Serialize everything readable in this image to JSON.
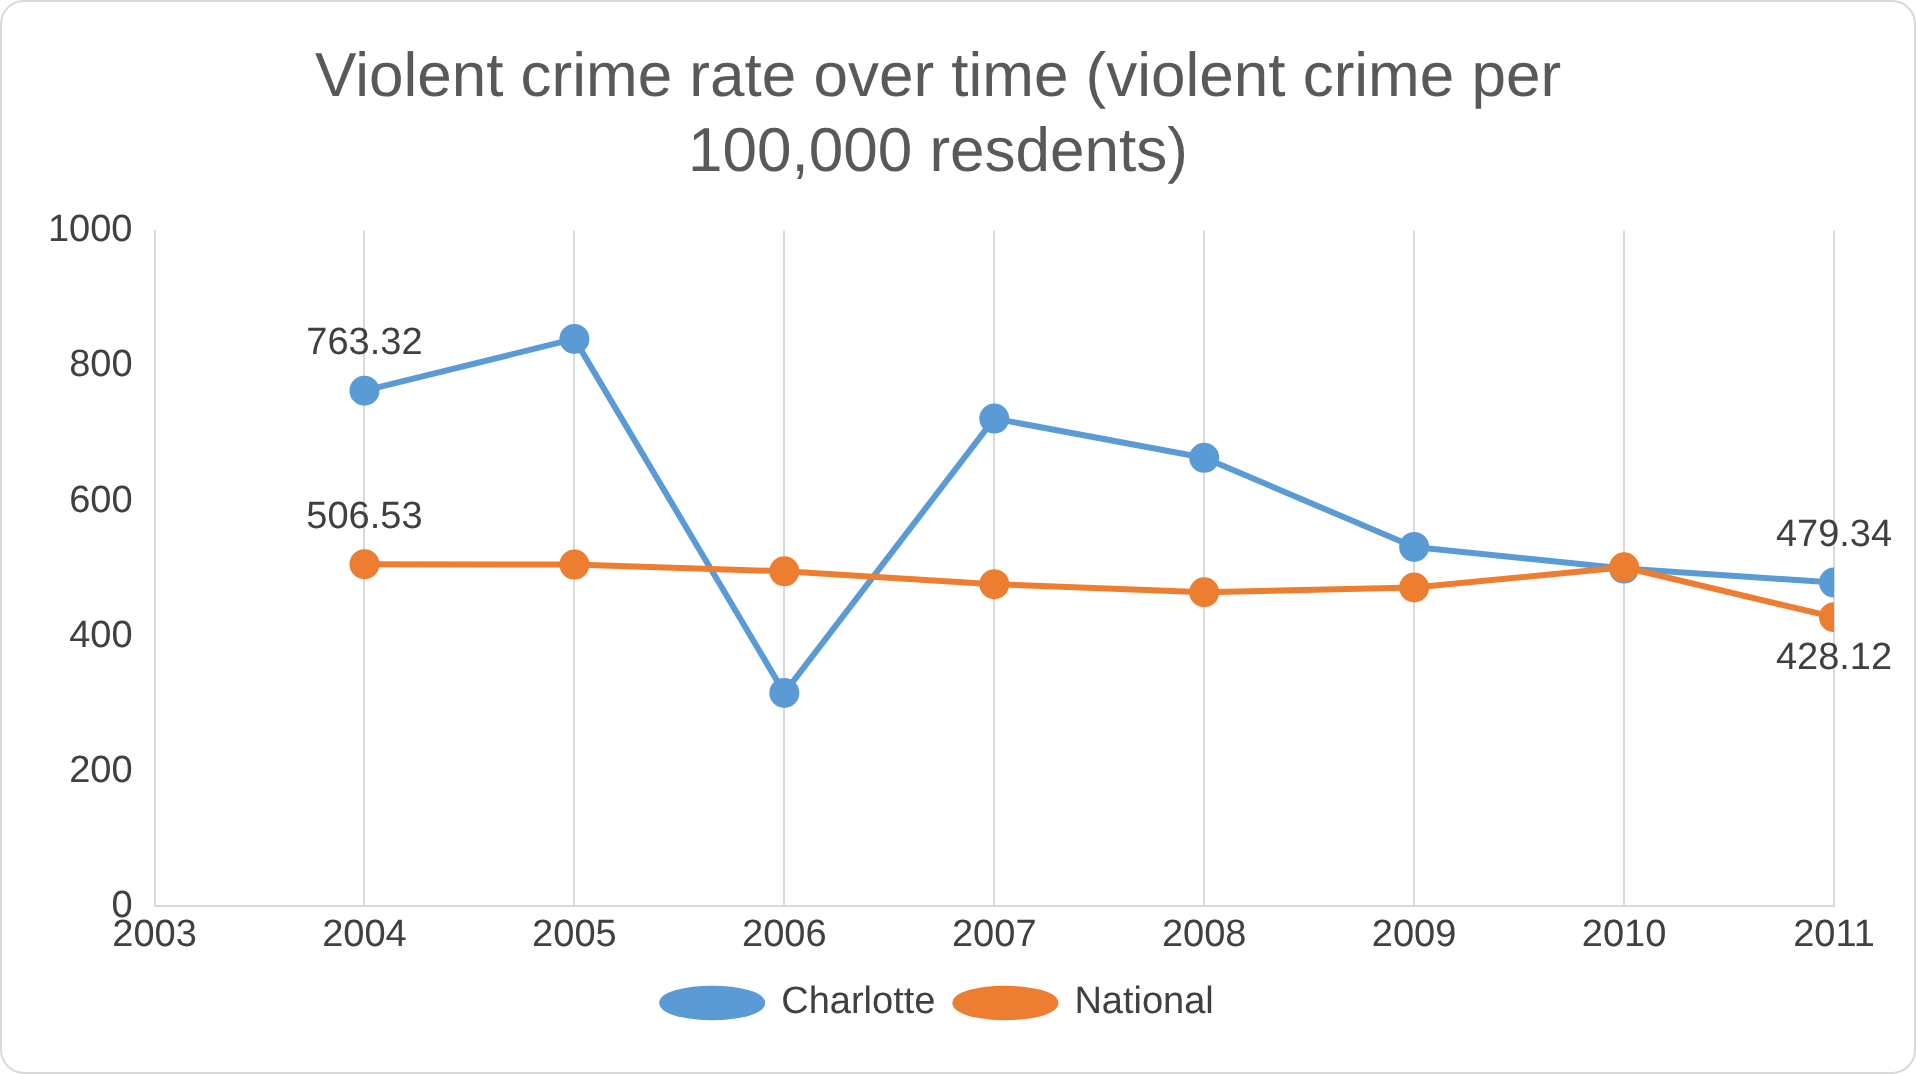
{
  "chart_data": {
    "type": "line",
    "title": "Violent crime rate over time (violent crime per 100,000 resdents)",
    "x": [
      2004,
      2005,
      2006,
      2007,
      2008,
      2009,
      2010,
      2011
    ],
    "series": [
      {
        "name": "Charlotte",
        "color": "#5b9bd5",
        "values": [
          763.32,
          840,
          316,
          722,
          664,
          532,
          500,
          479.34
        ],
        "value_labels": [
          "763.32",
          null,
          null,
          null,
          null,
          null,
          null,
          "479.34"
        ]
      },
      {
        "name": "National",
        "color": "#ed7d31",
        "values": [
          506.53,
          506,
          496,
          477,
          465,
          472,
          502,
          428.12
        ],
        "value_labels": [
          "506.53",
          null,
          null,
          null,
          null,
          null,
          null,
          "428.12"
        ]
      }
    ],
    "xlim": [
      2003,
      2011
    ],
    "xticks": [
      2003,
      2004,
      2005,
      2006,
      2007,
      2008,
      2009,
      2010,
      2011
    ],
    "ylim": [
      0,
      1000
    ],
    "yticks": [
      0,
      200,
      400,
      600,
      800,
      1000
    ],
    "grid": "x",
    "legend": "bottom",
    "marker": "circle",
    "line_style": "solid"
  }
}
